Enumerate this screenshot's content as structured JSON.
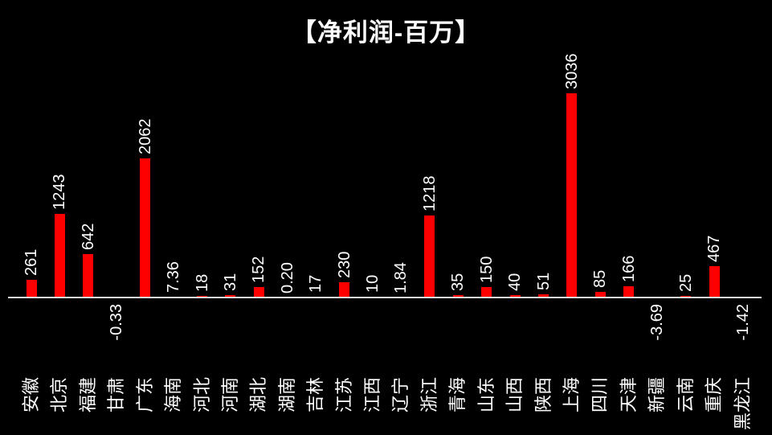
{
  "title": "【净利润-百万】",
  "colors": {
    "background": "#000000",
    "bar": "#ff0000",
    "text": "#ffffff",
    "axis_line": "#d9d9d9"
  },
  "chart_data": {
    "type": "bar",
    "title": "【净利润-百万】",
    "categories": [
      "安徽",
      "北京",
      "福建",
      "甘肃",
      "广东",
      "海南",
      "河北",
      "河南",
      "湖北",
      "湖南",
      "吉林",
      "江苏",
      "江西",
      "辽宁",
      "浙江",
      "青海",
      "山东",
      "山西",
      "陕西",
      "上海",
      "四川",
      "天津",
      "新疆",
      "云南",
      "重庆",
      "黑龙江"
    ],
    "values": [
      261,
      1243,
      642,
      -0.33,
      2062,
      7.36,
      18,
      31,
      152,
      0.2,
      17,
      230,
      10,
      1.84,
      1218,
      35,
      150,
      40,
      51,
      3036,
      85,
      166,
      -3.69,
      25,
      467,
      -1.42
    ],
    "value_labels": [
      "261",
      "1243",
      "642",
      "-0.33",
      "2062",
      "7.36",
      "18",
      "31",
      "152",
      "0.20",
      "17",
      "230",
      "10",
      "1.84",
      "1218",
      "35",
      "150",
      "40",
      "51",
      "3036",
      "85",
      "166",
      "-3.69",
      "25",
      "467",
      "-1.42"
    ],
    "xlabel": "",
    "ylabel": "",
    "legend": "none",
    "grid": false,
    "baseline_value": 0,
    "max_value": 3036,
    "bar_color": "#ff0000",
    "background_color": "#000000",
    "label_rotation_degrees": 90
  }
}
